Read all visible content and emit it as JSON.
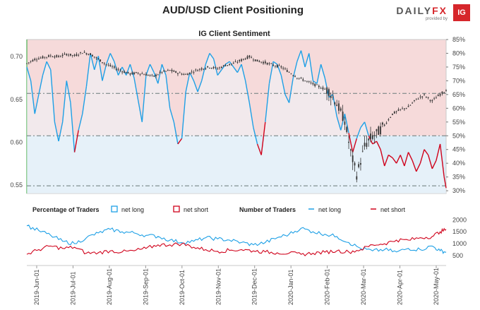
{
  "header": {
    "title": "AUD/USD Client Positioning",
    "brand": {
      "name_left": "DAILY",
      "name_right": "FX",
      "sub": "provided by",
      "logo": "IG"
    }
  },
  "chart_data": [
    {
      "type": "line",
      "title": "IG Client Sentiment",
      "x_ticks": [
        "2019-Jun-01",
        "2019-Jul-01",
        "2019-Aug-01",
        "2019-Sep-01",
        "2019-Oct-01",
        "2019-Nov-01",
        "2019-Dec-01",
        "2020-Jan-01",
        "2020-Feb-01",
        "2020-Mar-01",
        "2020-Apr-01",
        "2020-May-01"
      ],
      "y_left": {
        "ticks": [
          "0.55",
          "0.60",
          "0.65",
          "0.70"
        ],
        "ylim": [
          0.54,
          0.72
        ]
      },
      "y_right": {
        "ticks": [
          "30%",
          "35%",
          "40%",
          "45%",
          "50%",
          "55%",
          "60%",
          "65%",
          "70%",
          "75%",
          "80%",
          "85%"
        ],
        "ylim": [
          29,
          85
        ]
      },
      "reference_lines": {
        "price_level": 0.657,
        "pct_50": 50,
        "price_low_level": 0.549
      },
      "colors": {
        "net_long": "#1ea0e6",
        "net_short": "#d0021b",
        "long_fill": "#dcecf7",
        "short_fill": "#f6dada",
        "price": "#333333"
      },
      "series": [
        {
          "name": "AUD/USD price",
          "kind": "candles",
          "points": [
            [
              0,
              0.692
            ],
            [
              4,
              0.697
            ],
            [
              8,
              0.699
            ],
            [
              12,
              0.701
            ],
            [
              16,
              0.7
            ],
            [
              20,
              0.703
            ],
            [
              24,
              0.701
            ],
            [
              28,
              0.705
            ],
            [
              32,
              0.703
            ],
            [
              36,
              0.697
            ],
            [
              40,
              0.691
            ],
            [
              44,
              0.687
            ],
            [
              48,
              0.683
            ],
            [
              52,
              0.68
            ],
            [
              56,
              0.681
            ],
            [
              60,
              0.679
            ],
            [
              64,
              0.677
            ],
            [
              68,
              0.682
            ],
            [
              72,
              0.684
            ],
            [
              76,
              0.681
            ],
            [
              80,
              0.679
            ],
            [
              84,
              0.683
            ],
            [
              88,
              0.686
            ],
            [
              92,
              0.688
            ],
            [
              96,
              0.686
            ],
            [
              100,
              0.69
            ],
            [
              104,
              0.692
            ],
            [
              108,
              0.696
            ],
            [
              112,
              0.7
            ],
            [
              116,
              0.695
            ],
            [
              120,
              0.693
            ],
            [
              124,
              0.69
            ],
            [
              128,
              0.688
            ],
            [
              132,
              0.682
            ],
            [
              136,
              0.676
            ],
            [
              140,
              0.672
            ],
            [
              144,
              0.668
            ],
            [
              148,
              0.664
            ],
            [
              152,
              0.66
            ],
            [
              156,
              0.645
            ],
            [
              160,
              0.625
            ],
            [
              163,
              0.588
            ],
            [
              166,
              0.562
            ],
            [
              168,
              0.578
            ],
            [
              170,
              0.595
            ],
            [
              173,
              0.605
            ],
            [
              176,
              0.61
            ],
            [
              180,
              0.62
            ],
            [
              184,
              0.633
            ],
            [
              188,
              0.638
            ],
            [
              192,
              0.641
            ],
            [
              196,
              0.65
            ],
            [
              200,
              0.655
            ],
            [
              204,
              0.648
            ],
            [
              208,
              0.656
            ],
            [
              211,
              0.661
            ]
          ]
        },
        {
          "name": "sentiment %",
          "kind": "line",
          "points": [
            [
              0,
              75
            ],
            [
              2,
              70
            ],
            [
              4,
              58
            ],
            [
              6,
              65
            ],
            [
              8,
              72
            ],
            [
              10,
              77
            ],
            [
              12,
              74
            ],
            [
              14,
              55
            ],
            [
              16,
              48
            ],
            [
              18,
              55
            ],
            [
              20,
              70
            ],
            [
              22,
              62
            ],
            [
              24,
              44
            ],
            [
              26,
              52
            ],
            [
              28,
              58
            ],
            [
              30,
              68
            ],
            [
              32,
              80
            ],
            [
              34,
              74
            ],
            [
              36,
              79
            ],
            [
              38,
              70
            ],
            [
              40,
              76
            ],
            [
              42,
              80
            ],
            [
              44,
              77
            ],
            [
              46,
              72
            ],
            [
              48,
              75
            ],
            [
              50,
              72
            ],
            [
              52,
              76
            ],
            [
              54,
              71
            ],
            [
              56,
              63
            ],
            [
              58,
              55
            ],
            [
              60,
              72
            ],
            [
              62,
              76
            ],
            [
              64,
              73
            ],
            [
              66,
              69
            ],
            [
              68,
              76
            ],
            [
              70,
              72
            ],
            [
              72,
              60
            ],
            [
              74,
              55
            ],
            [
              76,
              47
            ],
            [
              78,
              49
            ],
            [
              80,
              66
            ],
            [
              82,
              73
            ],
            [
              84,
              70
            ],
            [
              86,
              66
            ],
            [
              88,
              70
            ],
            [
              90,
              76
            ],
            [
              92,
              80
            ],
            [
              94,
              78
            ],
            [
              96,
              72
            ],
            [
              98,
              74
            ],
            [
              100,
              76
            ],
            [
              102,
              77
            ],
            [
              104,
              75
            ],
            [
              106,
              73
            ],
            [
              108,
              76
            ],
            [
              110,
              70
            ],
            [
              112,
              62
            ],
            [
              114,
              53
            ],
            [
              116,
              47
            ],
            [
              118,
              43
            ],
            [
              120,
              55
            ],
            [
              122,
              69
            ],
            [
              124,
              77
            ],
            [
              126,
              76
            ],
            [
              128,
              72
            ],
            [
              130,
              65
            ],
            [
              132,
              62
            ],
            [
              134,
              71
            ],
            [
              136,
              77
            ],
            [
              138,
              81
            ],
            [
              140,
              75
            ],
            [
              142,
              80
            ],
            [
              144,
              70
            ],
            [
              146,
              69
            ],
            [
              148,
              76
            ],
            [
              150,
              71
            ],
            [
              152,
              64
            ],
            [
              154,
              65
            ],
            [
              156,
              57
            ],
            [
              158,
              52
            ],
            [
              160,
              58
            ],
            [
              162,
              51
            ],
            [
              164,
              44
            ],
            [
              166,
              49
            ],
            [
              168,
              53
            ],
            [
              170,
              55
            ],
            [
              172,
              50
            ],
            [
              174,
              47
            ],
            [
              176,
              48
            ],
            [
              178,
              45
            ],
            [
              180,
              39
            ],
            [
              182,
              43
            ],
            [
              184,
              42
            ],
            [
              186,
              40
            ],
            [
              188,
              43
            ],
            [
              190,
              39
            ],
            [
              192,
              44
            ],
            [
              194,
              41
            ],
            [
              196,
              37
            ],
            [
              198,
              40
            ],
            [
              200,
              45
            ],
            [
              202,
              43
            ],
            [
              204,
              38
            ],
            [
              206,
              41
            ],
            [
              208,
              47
            ],
            [
              210,
              35
            ],
            [
              211,
              31
            ]
          ]
        }
      ]
    },
    {
      "type": "line",
      "legend": [
        {
          "label": "Percentage of Traders"
        },
        {
          "label": "net long",
          "color": "#1ea0e6",
          "marker": "box"
        },
        {
          "label": "net short",
          "color": "#d0021b",
          "marker": "box"
        },
        {
          "label": "Number of Traders"
        },
        {
          "label": "net long",
          "color": "#1ea0e6",
          "marker": "line"
        },
        {
          "label": "net short",
          "color": "#d0021b",
          "marker": "line"
        }
      ],
      "y_right": {
        "ticks": [
          "500",
          "1000",
          "1500",
          "2000"
        ],
        "ylim": [
          200,
          2100
        ]
      },
      "series": [
        {
          "name": "net long",
          "color": "#1ea0e6",
          "points": [
            [
              0,
              1750
            ],
            [
              6,
              1550
            ],
            [
              12,
              1350
            ],
            [
              18,
              1100
            ],
            [
              24,
              1000
            ],
            [
              30,
              1250
            ],
            [
              36,
              1450
            ],
            [
              42,
              1600
            ],
            [
              48,
              1500
            ],
            [
              54,
              1450
            ],
            [
              60,
              1350
            ],
            [
              66,
              1300
            ],
            [
              72,
              1150
            ],
            [
              78,
              1050
            ],
            [
              84,
              1100
            ],
            [
              90,
              1250
            ],
            [
              96,
              1200
            ],
            [
              102,
              1150
            ],
            [
              108,
              1050
            ],
            [
              114,
              950
            ],
            [
              120,
              1050
            ],
            [
              126,
              1250
            ],
            [
              132,
              1400
            ],
            [
              138,
              1650
            ],
            [
              144,
              1500
            ],
            [
              150,
              1400
            ],
            [
              156,
              1300
            ],
            [
              162,
              1050
            ],
            [
              168,
              800
            ],
            [
              174,
              700
            ],
            [
              180,
              750
            ],
            [
              186,
              650
            ],
            [
              192,
              800
            ],
            [
              198,
              750
            ],
            [
              204,
              900
            ],
            [
              208,
              700
            ],
            [
              211,
              650
            ]
          ]
        },
        {
          "name": "net short",
          "color": "#d0021b",
          "points": [
            [
              0,
              550
            ],
            [
              6,
              750
            ],
            [
              12,
              900
            ],
            [
              18,
              800
            ],
            [
              24,
              850
            ],
            [
              30,
              600
            ],
            [
              36,
              620
            ],
            [
              42,
              700
            ],
            [
              48,
              650
            ],
            [
              54,
              700
            ],
            [
              60,
              800
            ],
            [
              66,
              950
            ],
            [
              72,
              950
            ],
            [
              78,
              1000
            ],
            [
              84,
              850
            ],
            [
              90,
              750
            ],
            [
              96,
              680
            ],
            [
              102,
              720
            ],
            [
              108,
              750
            ],
            [
              114,
              700
            ],
            [
              120,
              650
            ],
            [
              126,
              620
            ],
            [
              132,
              600
            ],
            [
              138,
              550
            ],
            [
              144,
              600
            ],
            [
              150,
              640
            ],
            [
              156,
              700
            ],
            [
              162,
              650
            ],
            [
              168,
              750
            ],
            [
              174,
              950
            ],
            [
              180,
              1000
            ],
            [
              186,
              1150
            ],
            [
              192,
              1150
            ],
            [
              198,
              1250
            ],
            [
              204,
              1300
            ],
            [
              208,
              1500
            ],
            [
              211,
              1600
            ]
          ]
        }
      ]
    }
  ]
}
